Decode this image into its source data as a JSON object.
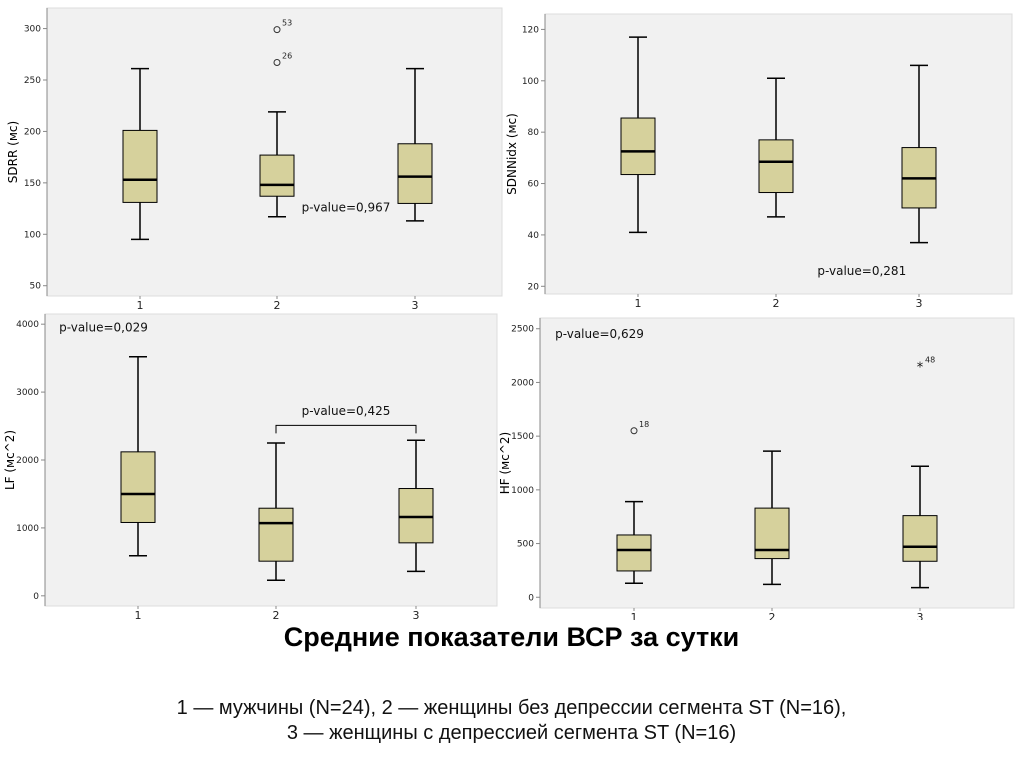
{
  "title": "Средние показатели ВСР  за сутки",
  "caption": {
    "line1": "1 — мужчины (N=24), 2 — женщины без депрессии сегмента ST (N=16),",
    "line2": "3 — женщины с депрессией сегмента ST (N=16)"
  },
  "colors": {
    "box_fill": "#d6d19c",
    "plot_bg": "#f1f1f1",
    "axis": "#888888",
    "outline": "#000000"
  },
  "chart_data": [
    {
      "type": "boxplot",
      "ylabel": "SDRR (мс)",
      "yticks": [
        50,
        100,
        150,
        200,
        250,
        300
      ],
      "ylim": [
        40,
        320
      ],
      "categories": [
        "1",
        "2",
        "3"
      ],
      "boxes": [
        {
          "whisker_low": 95,
          "q1": 131,
          "median": 153,
          "q3": 201,
          "whisker_high": 261
        },
        {
          "whisker_low": 117,
          "q1": 137,
          "median": 148,
          "q3": 177,
          "whisker_high": 219
        },
        {
          "whisker_low": 113,
          "q1": 130,
          "median": 156,
          "q3": 188,
          "whisker_high": 261
        }
      ],
      "outliers": [
        {
          "category": "2",
          "value": 299,
          "label": "53",
          "marker": "circle"
        },
        {
          "category": "2",
          "value": 267,
          "label": "26",
          "marker": "circle"
        }
      ],
      "annotations": [
        {
          "text": "p-value=0,967",
          "x": "2.5",
          "y": 126
        }
      ]
    },
    {
      "type": "boxplot",
      "ylabel": "SDNNidx (мс)",
      "yticks": [
        20,
        40,
        60,
        80,
        100,
        120
      ],
      "ylim": [
        17,
        126
      ],
      "categories": [
        "1",
        "2",
        "3"
      ],
      "boxes": [
        {
          "whisker_low": 41,
          "q1": 63.5,
          "median": 72.5,
          "q3": 85.5,
          "whisker_high": 117
        },
        {
          "whisker_low": 47,
          "q1": 56.5,
          "median": 68.5,
          "q3": 77,
          "whisker_high": 101
        },
        {
          "whisker_low": 37,
          "q1": 50.5,
          "median": 62,
          "q3": 74,
          "whisker_high": 106
        }
      ],
      "outliers": [],
      "annotations": [
        {
          "text": "p-value=0,281",
          "x": "2.6",
          "y": 26
        }
      ]
    },
    {
      "type": "boxplot",
      "ylabel": "LF (мс^2)",
      "yticks": [
        0,
        1000,
        2000,
        3000,
        4000
      ],
      "ylim": [
        -150,
        4150
      ],
      "categories": [
        "1",
        "2",
        "3"
      ],
      "boxes": [
        {
          "whisker_low": 590,
          "q1": 1080,
          "median": 1500,
          "q3": 2120,
          "whisker_high": 3520
        },
        {
          "whisker_low": 230,
          "q1": 510,
          "median": 1070,
          "q3": 1290,
          "whisker_high": 2250
        },
        {
          "whisker_low": 360,
          "q1": 780,
          "median": 1160,
          "q3": 1580,
          "whisker_high": 2290
        }
      ],
      "outliers": [],
      "annotations": [
        {
          "text": "p-value=0,029",
          "x": "0.75",
          "y": 3950
        },
        {
          "text": "p-value=0,425",
          "x": "2.5",
          "y": 2720,
          "bracket": [
            "2",
            "3"
          ],
          "bracket_y": 2510
        }
      ]
    },
    {
      "type": "boxplot",
      "ylabel": "HF (мс^2)",
      "yticks": [
        0,
        500,
        1000,
        1500,
        2000,
        2500
      ],
      "ylim": [
        -100,
        2600
      ],
      "categories": [
        "1",
        "2",
        "3"
      ],
      "boxes": [
        {
          "whisker_low": 130,
          "q1": 245,
          "median": 440,
          "q3": 580,
          "whisker_high": 890
        },
        {
          "whisker_low": 120,
          "q1": 360,
          "median": 440,
          "q3": 830,
          "whisker_high": 1360
        },
        {
          "whisker_low": 90,
          "q1": 335,
          "median": 470,
          "q3": 760,
          "whisker_high": 1220
        }
      ],
      "outliers": [
        {
          "category": "1",
          "value": 1550,
          "label": "18",
          "marker": "circle"
        },
        {
          "category": "3",
          "value": 2150,
          "label": "48",
          "marker": "star"
        }
      ],
      "annotations": [
        {
          "text": "p-value=0,629",
          "x": "0.75",
          "y": 2450
        }
      ]
    }
  ]
}
